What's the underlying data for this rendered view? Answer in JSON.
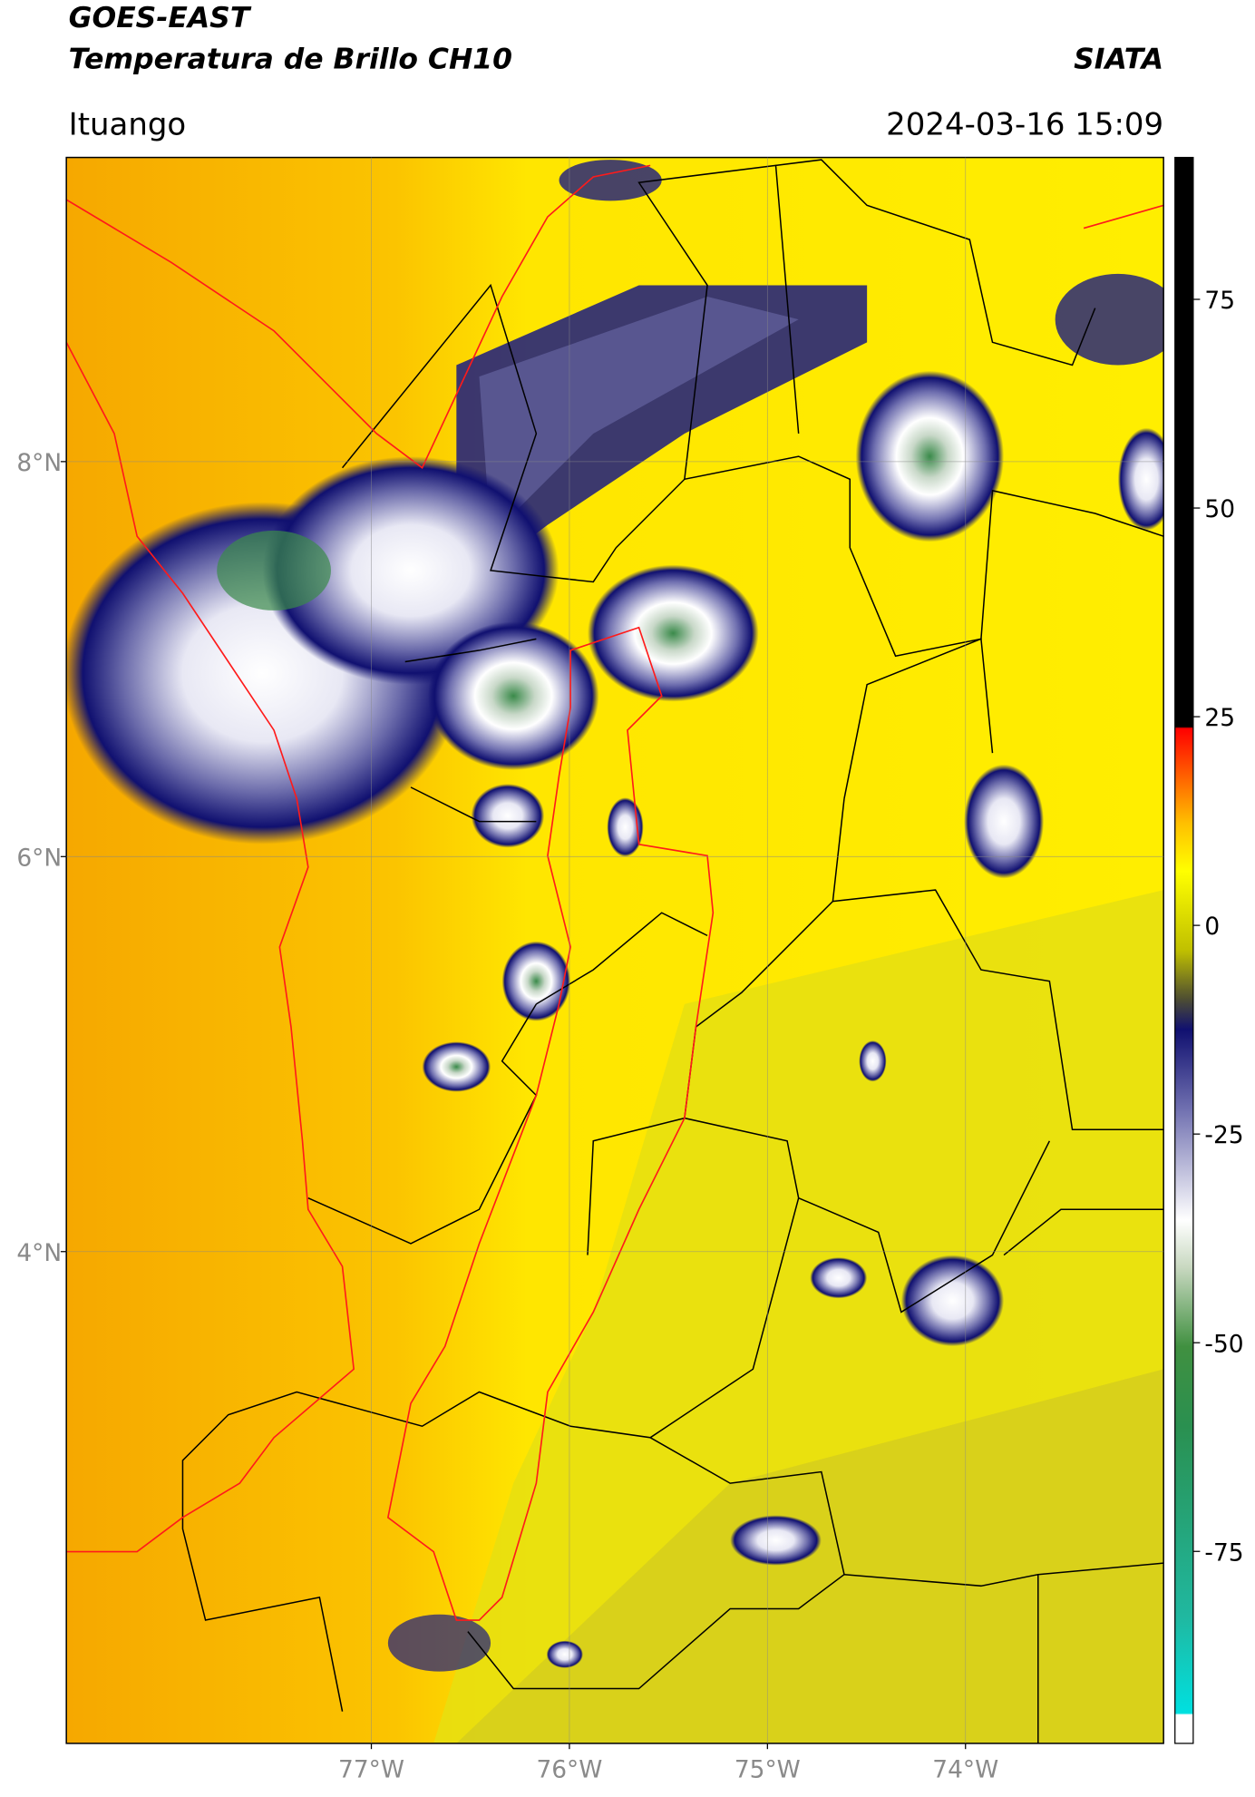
{
  "header": {
    "title": "GOES-EAST",
    "subtitle": "Temperatura de Brillo CH10",
    "source": "SIATA",
    "location": "Ituango",
    "datetime": "2024-03-16 15:09"
  },
  "map": {
    "xlim": [
      -78.54,
      -73.0
    ],
    "ylim": [
      1.51,
      9.54
    ],
    "xticks": [
      {
        "value": -77,
        "label": "77°W"
      },
      {
        "value": -76,
        "label": "76°W"
      },
      {
        "value": -75,
        "label": "75°W"
      },
      {
        "value": -74,
        "label": "74°W"
      }
    ],
    "yticks": [
      {
        "value": 8,
        "label": "8°N"
      },
      {
        "value": 6,
        "label": "6°N"
      },
      {
        "value": 4,
        "label": "4°N"
      }
    ]
  },
  "colorbar": {
    "ylim": [
      -98,
      92
    ],
    "ticks": [
      75,
      50,
      25,
      0,
      -25,
      -50,
      -75
    ]
  }
}
